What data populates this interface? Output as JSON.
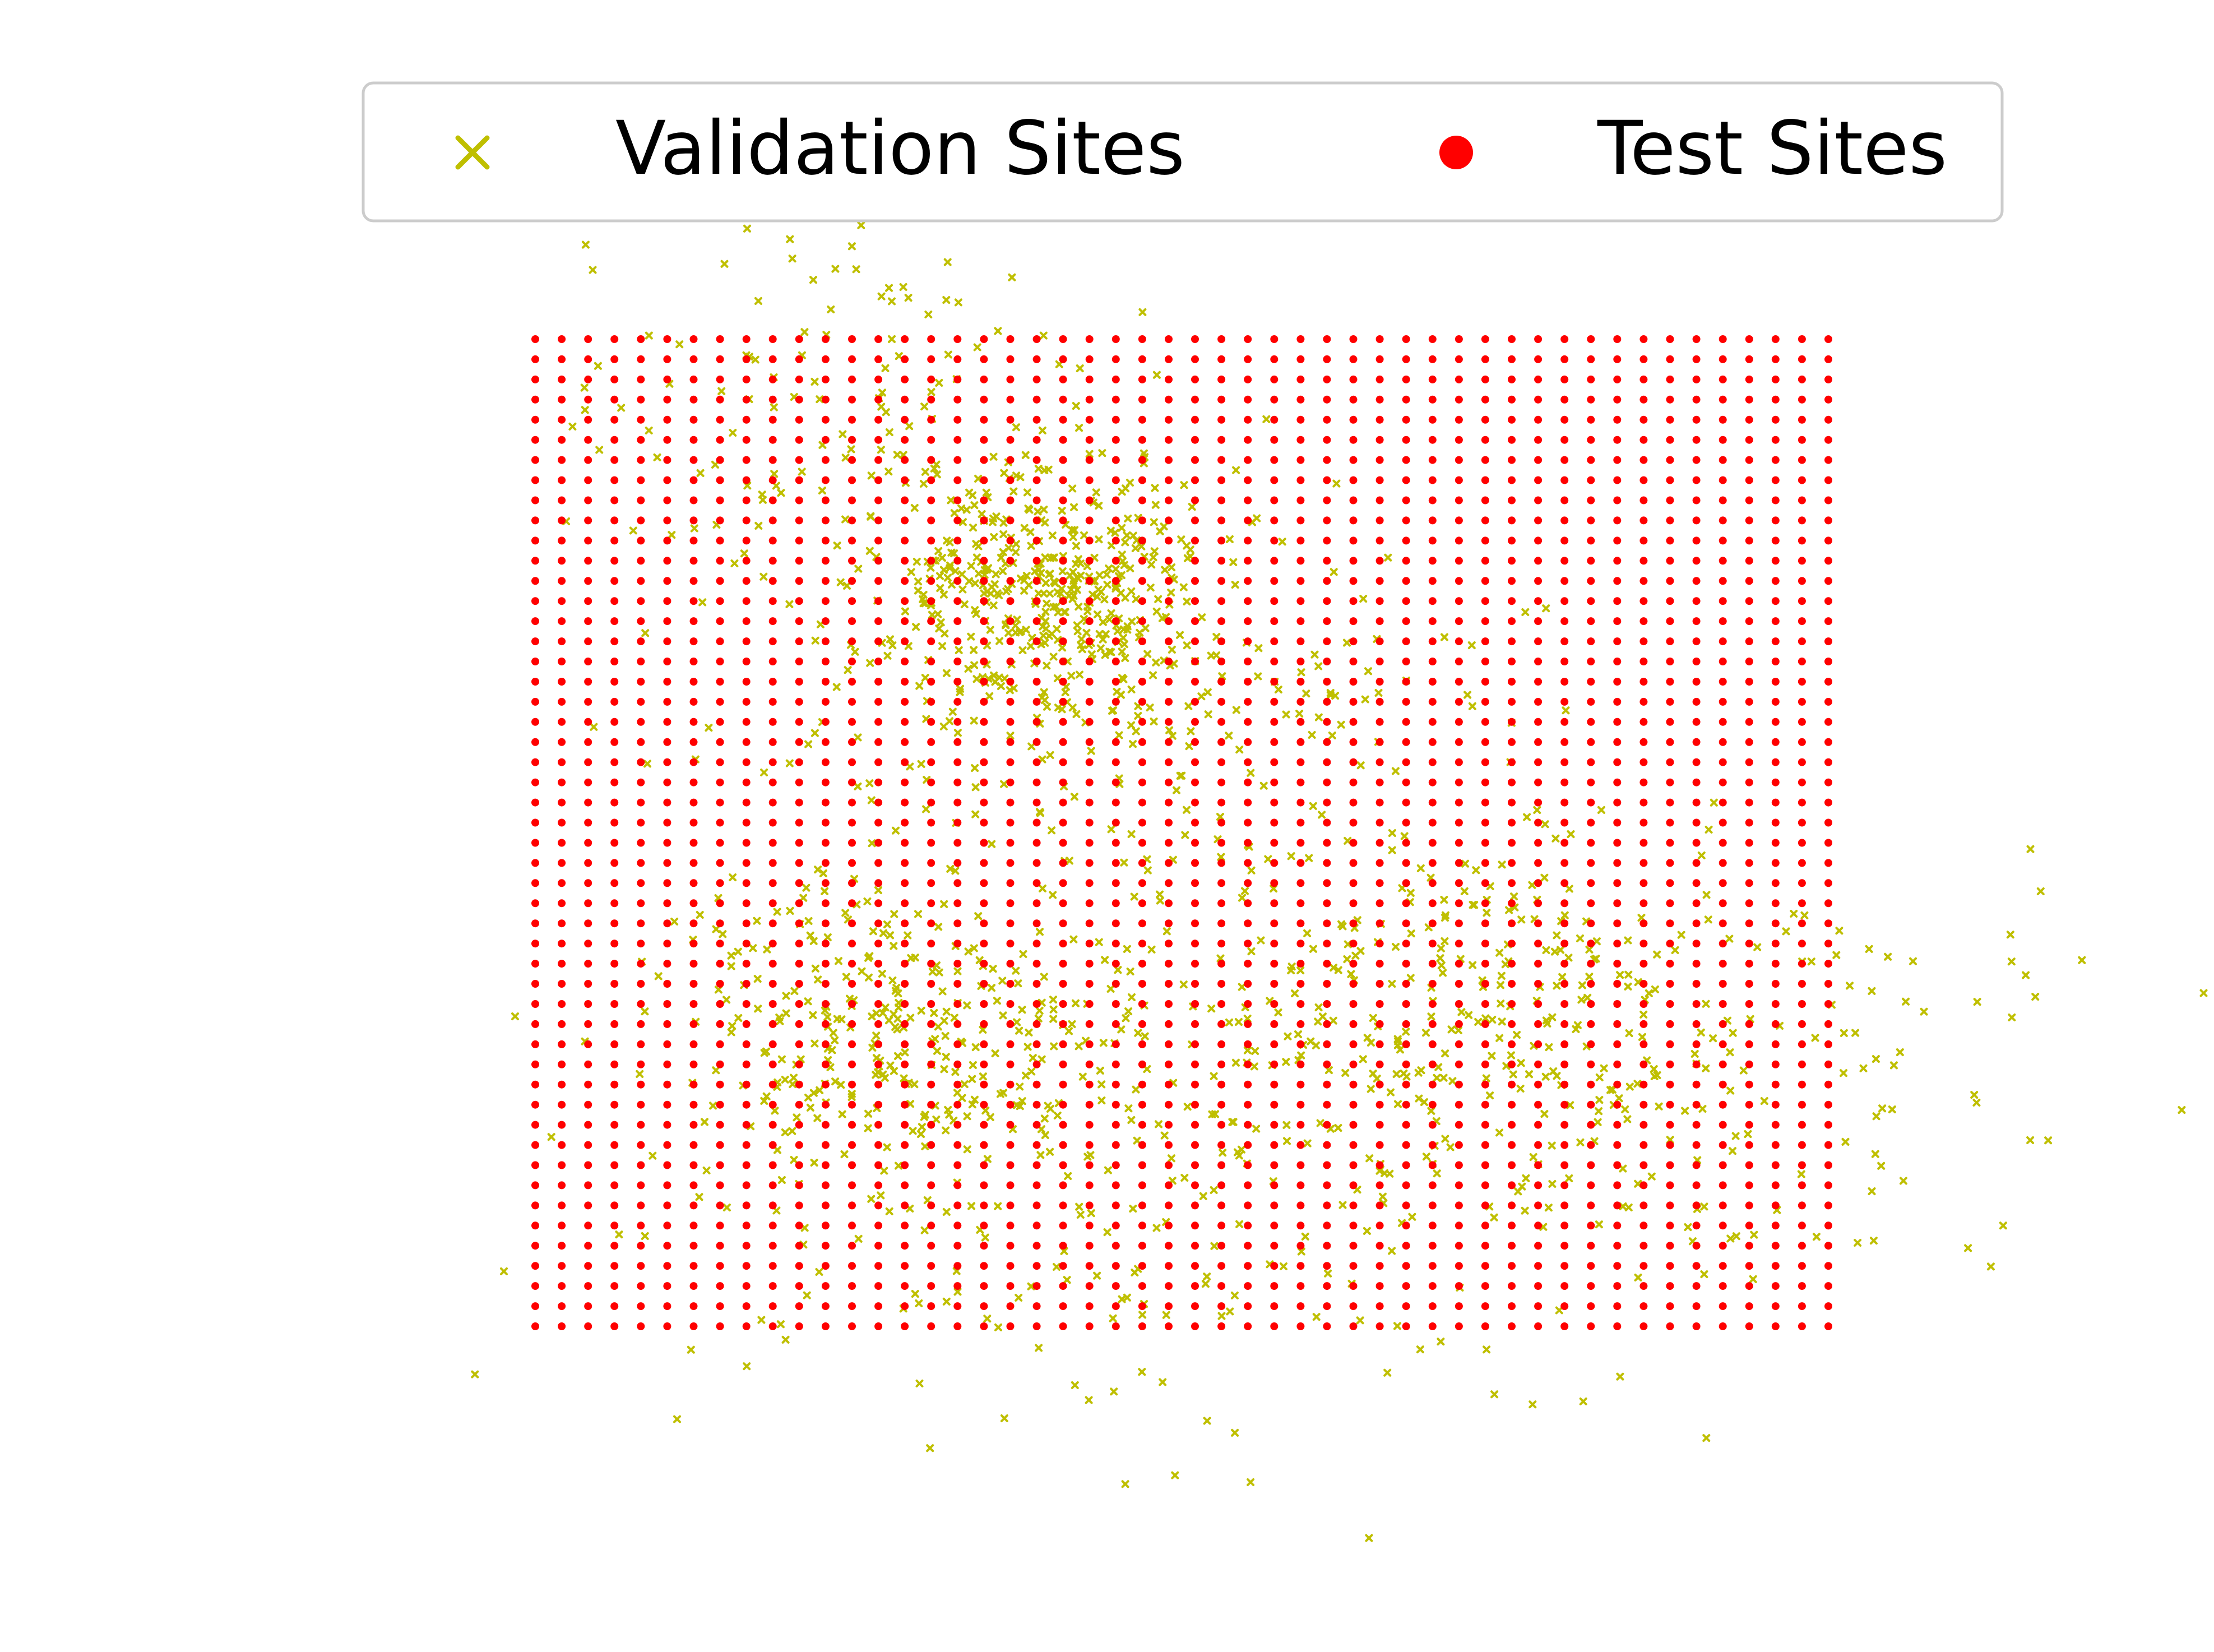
{
  "chart_data": {
    "type": "scatter",
    "title": "",
    "xlabel": "",
    "ylabel": "",
    "axes_visible": false,
    "grid": false,
    "legend_position": "top-center",
    "legend_columns": 2,
    "xlim": [
      -0.2,
      1.3
    ],
    "ylim": [
      -0.22,
      1.22
    ],
    "series": [
      {
        "name": "Validation Sites",
        "key": "validation",
        "marker": "x",
        "color": "#bfbf00",
        "count": 1500,
        "distribution": "clustered scatter around the test grid, denser near (0.38, 0.75) and (0.25, 0.30), some points outside the grid"
      },
      {
        "name": "Test Sites",
        "key": "test",
        "marker": "circle",
        "color": "#ff0000",
        "grid": {
          "x_start": 0.0,
          "x_end": 1.0,
          "x_count": 50,
          "y_start": 0.0,
          "y_end": 1.0,
          "y_count": 50
        }
      }
    ]
  }
}
